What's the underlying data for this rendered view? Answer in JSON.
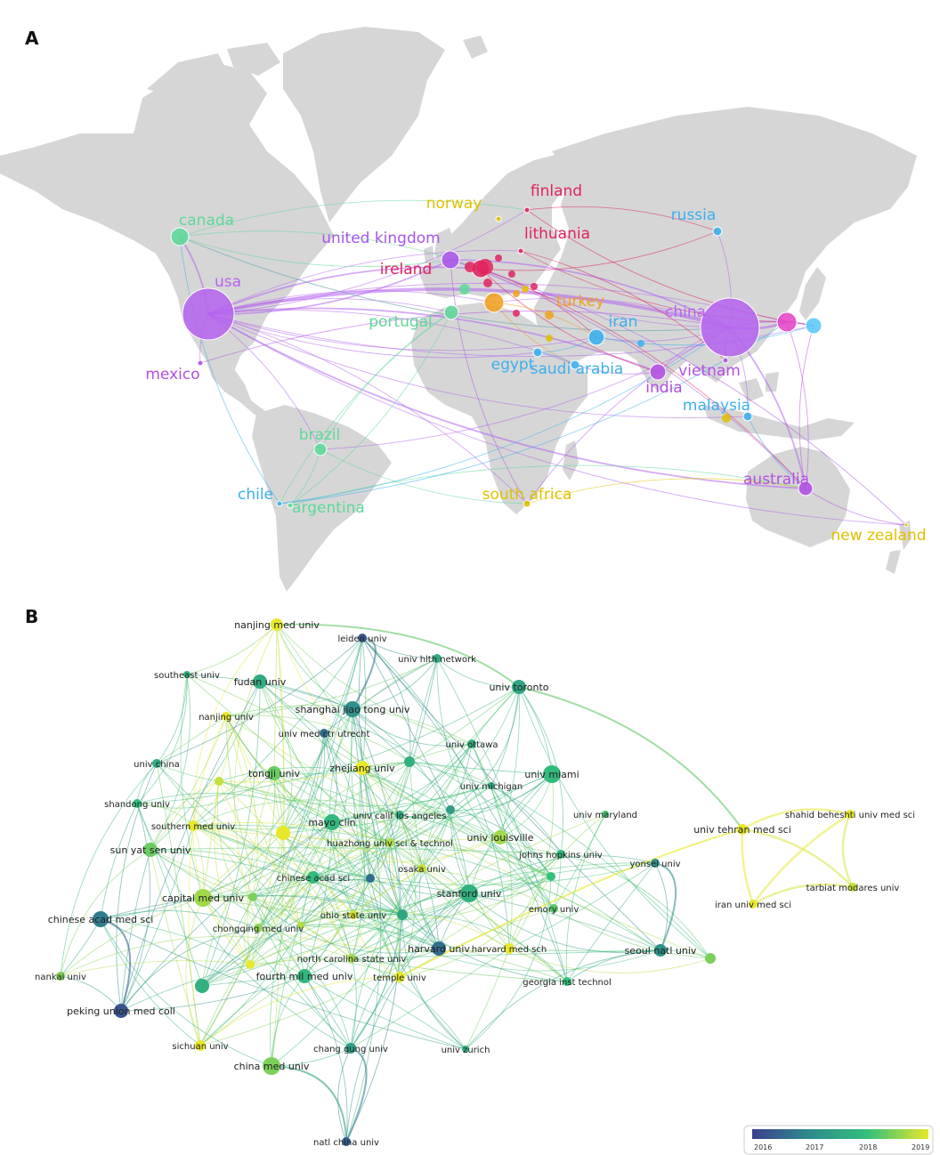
{
  "panel_a": {
    "label": "A",
    "nodes": [
      {
        "id": "usa",
        "label": "usa",
        "color": "#b565ee",
        "size": 29
      },
      {
        "id": "china",
        "label": "china",
        "color": "#b565ee",
        "size": 33
      },
      {
        "id": "canada",
        "label": "canada",
        "color": "#5ed89a",
        "size": 10
      },
      {
        "id": "mexico",
        "label": "mexico",
        "color": "#b34fe3",
        "size": 3
      },
      {
        "id": "united_kingdom",
        "label": "united kingdom",
        "color": "#a855e8",
        "size": 10
      },
      {
        "id": "ireland",
        "label": "ireland",
        "color": "#e0245e",
        "size": 10
      },
      {
        "id": "finland",
        "label": "finland",
        "color": "#e0245e",
        "size": 3
      },
      {
        "id": "norway",
        "label": "norway",
        "color": "#e0c000",
        "size": 3
      },
      {
        "id": "lithuania",
        "label": "lithuania",
        "color": "#e0245e",
        "size": 3
      },
      {
        "id": "portugal",
        "label": "portugal",
        "color": "#5ed89a",
        "size": 8
      },
      {
        "id": "turkey",
        "label": "turkey",
        "color": "#f0a020",
        "size": 11
      },
      {
        "id": "russia",
        "label": "russia",
        "color": "#3ab0ec",
        "size": 5
      },
      {
        "id": "iran",
        "label": "iran",
        "color": "#3ab0ec",
        "size": 9
      },
      {
        "id": "egypt",
        "label": "egypt",
        "color": "#3ab0ec",
        "size": 5
      },
      {
        "id": "saudi_arabia",
        "label": "saudi arabia",
        "color": "#3ab0ec",
        "size": 5
      },
      {
        "id": "india",
        "label": "india",
        "color": "#b34fe3",
        "size": 9
      },
      {
        "id": "vietnam",
        "label": "vietnam",
        "color": "#b34fe3",
        "size": 3
      },
      {
        "id": "malaysia",
        "label": "malaysia",
        "color": "#3ab0ec",
        "size": 5
      },
      {
        "id": "brazil",
        "label": "brazil",
        "color": "#5ed89a",
        "size": 7
      },
      {
        "id": "chile",
        "label": "chile",
        "color": "#3ab0ec",
        "size": 3
      },
      {
        "id": "argentina",
        "label": "argentina",
        "color": "#5ed89a",
        "size": 3
      },
      {
        "id": "south_africa",
        "label": "south africa",
        "color": "#e0c000",
        "size": 4
      },
      {
        "id": "australia",
        "label": "australia",
        "color": "#b34fe3",
        "size": 8
      },
      {
        "id": "new_zealand",
        "label": "new zealand",
        "color": "#e0c000",
        "size": 2
      },
      {
        "id": "japan",
        "label": "",
        "color": "#e546c9",
        "size": 11
      },
      {
        "id": "korea",
        "label": "",
        "color": "#5ac8fa",
        "size": 9
      }
    ]
  },
  "panel_b": {
    "label": "B",
    "nodes": [
      {
        "id": "nanjing_med_univ",
        "label": "nanjing med univ",
        "year": 2019.0,
        "size": 7
      },
      {
        "id": "leiden_univ",
        "label": "leiden univ",
        "year": 2016.3,
        "size": 5
      },
      {
        "id": "univ_hlth_network",
        "label": "univ hlth network",
        "year": 2017.6,
        "size": 5
      },
      {
        "id": "southeast_univ",
        "label": "southeast univ",
        "year": 2017.8,
        "size": 4
      },
      {
        "id": "fudan_univ",
        "label": "fudan univ",
        "year": 2017.6,
        "size": 8
      },
      {
        "id": "univ_toronto",
        "label": "univ toronto",
        "year": 2017.5,
        "size": 8
      },
      {
        "id": "shanghai_jiao_tong_univ",
        "label": "shanghai jiao tong univ",
        "year": 2017.1,
        "size": 9
      },
      {
        "id": "nanjing_univ",
        "label": "nanjing univ",
        "year": 2019.0,
        "size": 5
      },
      {
        "id": "univ_med_ctr_utrecht",
        "label": "univ med ctr utrecht",
        "year": 2016.6,
        "size": 5
      },
      {
        "id": "univ_ottawa",
        "label": "univ ottawa",
        "year": 2017.7,
        "size": 5
      },
      {
        "id": "univ_china",
        "label": "univ china",
        "year": 2017.6,
        "size": 5
      },
      {
        "id": "tongji_univ",
        "label": "tongji univ",
        "year": 2018.3,
        "size": 8
      },
      {
        "id": "zhejiang_univ",
        "label": "zhejiang univ",
        "year": 2019.0,
        "size": 8
      },
      {
        "id": "univ_miami",
        "label": "univ miami",
        "year": 2017.9,
        "size": 10
      },
      {
        "id": "univ_michigan",
        "label": "univ michigan",
        "year": 2017.5,
        "size": 4
      },
      {
        "id": "shandong_univ",
        "label": "shandong univ",
        "year": 2018.0,
        "size": 5
      },
      {
        "id": "univ_maryland",
        "label": "univ maryland",
        "year": 2018.1,
        "size": 4
      },
      {
        "id": "southern_med_univ",
        "label": "southern med univ",
        "year": 2019.0,
        "size": 6
      },
      {
        "id": "mayo_clin",
        "label": "mayo clin",
        "year": 2017.8,
        "size": 9
      },
      {
        "id": "univ_calif_los_angeles",
        "label": "univ calif los angeles",
        "year": 2017.6,
        "size": 5
      },
      {
        "id": "univ_tehran_med_sci",
        "label": "univ tehran med sci",
        "year": 2019.0,
        "size": 6
      },
      {
        "id": "shahid_beheshti_univ_med_sci",
        "label": "shahid beheshti univ med sci",
        "year": 2019.0,
        "size": 5
      },
      {
        "id": "huazhong_univ_sci_technol",
        "label": "huazhong univ sci & technol",
        "year": 2018.7,
        "size": 5
      },
      {
        "id": "univ_louisville",
        "label": "univ louisville",
        "year": 2018.6,
        "size": 8
      },
      {
        "id": "sun_yat_sen_univ",
        "label": "sun yat sen univ",
        "year": 2018.3,
        "size": 8
      },
      {
        "id": "johns_hopkins_univ",
        "label": "johns hopkins univ",
        "year": 2017.9,
        "size": 5
      },
      {
        "id": "yonsei_univ",
        "label": "yonsei univ",
        "year": 2017.1,
        "size": 5
      },
      {
        "id": "osaka_univ",
        "label": "osaka univ",
        "year": 2018.8,
        "size": 5
      },
      {
        "id": "chinese_acad_sci",
        "label": "chinese acad sci",
        "year": 2017.9,
        "size": 7
      },
      {
        "id": "tarbiat_modares_univ",
        "label": "tarbiat modares univ",
        "year": 2018.8,
        "size": 5
      },
      {
        "id": "capital_med_univ",
        "label": "capital med univ",
        "year": 2018.6,
        "size": 10
      },
      {
        "id": "stanford_univ",
        "label": "stanford univ",
        "year": 2017.7,
        "size": 10
      },
      {
        "id": "iran_univ_med_sci",
        "label": "iran univ med sci",
        "year": 2019.0,
        "size": 5
      },
      {
        "id": "chinese_acad_med_sci",
        "label": "chinese acad med sci",
        "year": 2016.8,
        "size": 9
      },
      {
        "id": "emory_univ",
        "label": "emory univ",
        "year": 2018.2,
        "size": 5
      },
      {
        "id": "ohio_state_univ",
        "label": "ohio state univ",
        "year": 2018.9,
        "size": 5
      },
      {
        "id": "chongqing_med_univ",
        "label": "chongqing med univ",
        "year": 2018.5,
        "size": 5
      },
      {
        "id": "harvard_univ",
        "label": "harvard univ",
        "year": 2016.6,
        "size": 8
      },
      {
        "id": "harvard_med_sch",
        "label": "harvard med sch",
        "year": 2019.0,
        "size": 6
      },
      {
        "id": "seoul_natl_univ",
        "label": "seoul natl univ",
        "year": 2017.1,
        "size": 7
      },
      {
        "id": "north_carolina_state_univ",
        "label": "north carolina state univ",
        "year": 2018.6,
        "size": 5
      },
      {
        "id": "nankai_univ",
        "label": "nankai univ",
        "year": 2018.4,
        "size": 5
      },
      {
        "id": "fourth_mil_med_univ",
        "label": "fourth mil med univ",
        "year": 2017.8,
        "size": 8
      },
      {
        "id": "temple_univ",
        "label": "temple univ",
        "year": 2019.0,
        "size": 6
      },
      {
        "id": "georgia_inst_technol",
        "label": "georgia inst technol",
        "year": 2018.0,
        "size": 5
      },
      {
        "id": "peking_union_med_coll",
        "label": "peking union med coll",
        "year": 2016.3,
        "size": 8
      },
      {
        "id": "sichuan_univ",
        "label": "sichuan univ",
        "year": 2019.0,
        "size": 6
      },
      {
        "id": "chang_gung_univ",
        "label": "chang gung univ",
        "year": 2017.3,
        "size": 6
      },
      {
        "id": "univ_zurich",
        "label": "univ zurich",
        "year": 2017.7,
        "size": 4
      },
      {
        "id": "china_med_univ",
        "label": "china med univ",
        "year": 2018.4,
        "size": 10
      },
      {
        "id": "natl_china_univ",
        "label": "natl china univ",
        "year": 2016.4,
        "size": 5
      }
    ],
    "legend": {
      "ticks": [
        "2016",
        "2017",
        "2018",
        "2019"
      ],
      "colors": [
        "#3b3f8f",
        "#2e8c8c",
        "#34c07a",
        "#e8e82a"
      ]
    }
  }
}
